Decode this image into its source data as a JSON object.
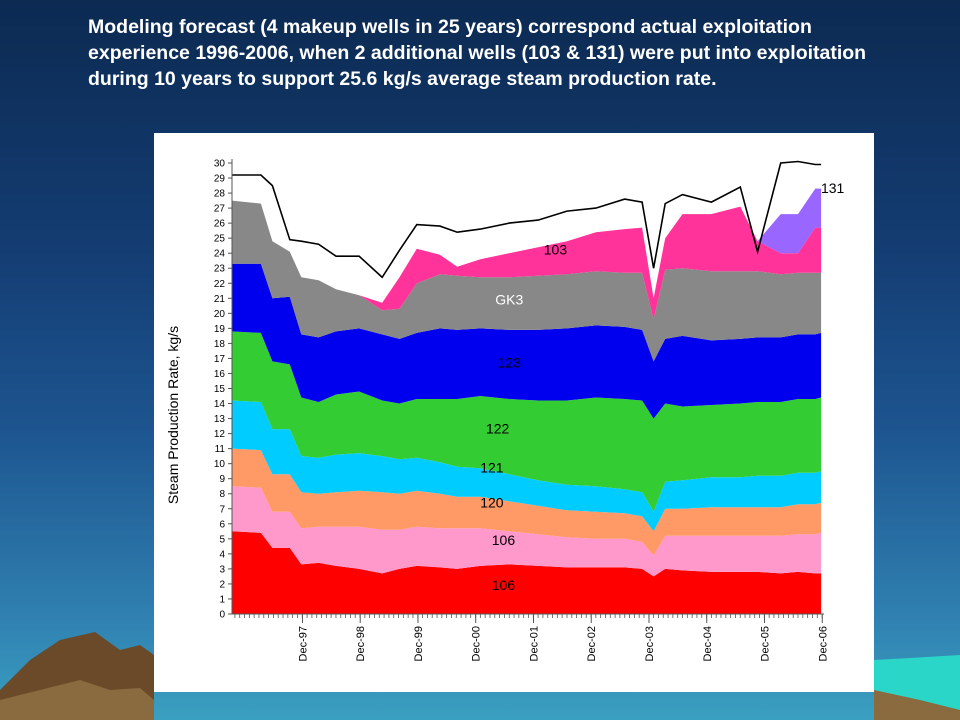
{
  "headline": "Modeling forecast (4 makeup wells in 25 years) correspond actual exploitation experience 1996-2006, when 2 additional wells (103 & 131) were  put into exploitation during 10 years to support 25.6 kg/s average steam production rate.",
  "chart_data": {
    "type": "area",
    "stacked": true,
    "title": "",
    "ylabel": "Steam Production Rate, kg/s",
    "xlabel": "",
    "ylim": [
      0,
      30
    ],
    "xlim": [
      1996.7,
      2006.95
    ],
    "yticks": [
      0,
      1,
      2,
      3,
      4,
      5,
      6,
      7,
      8,
      9,
      10,
      11,
      12,
      13,
      14,
      15,
      16,
      17,
      18,
      19,
      20,
      21,
      22,
      23,
      24,
      25,
      26,
      27,
      28,
      29,
      30
    ],
    "xticks": [
      {
        "label": "Dec-97",
        "x": 1997.92
      },
      {
        "label": "Dec-98",
        "x": 1998.92
      },
      {
        "label": "Dec-99",
        "x": 1999.92
      },
      {
        "label": "Dec-00",
        "x": 2000.92
      },
      {
        "label": "Dec-01",
        "x": 2001.92
      },
      {
        "label": "Dec-02",
        "x": 2002.92
      },
      {
        "label": "Dec-03",
        "x": 2003.92
      },
      {
        "label": "Dec-04",
        "x": 2004.92
      },
      {
        "label": "Dec-05",
        "x": 2005.92
      },
      {
        "label": "Dec-06",
        "x": 2006.92
      }
    ],
    "x": [
      1996.7,
      1997.2,
      1997.4,
      1997.7,
      1997.9,
      1998.2,
      1998.5,
      1998.9,
      1999.3,
      1999.6,
      1999.9,
      2000.3,
      2000.6,
      2001.0,
      2001.5,
      2002.0,
      2002.5,
      2003.0,
      2003.5,
      2003.8,
      2004.0,
      2004.2,
      2004.5,
      2005.0,
      2005.5,
      2005.8,
      2006.2,
      2006.5,
      2006.8,
      2006.9
    ],
    "series": [
      {
        "label": "106",
        "color": "#ff0000",
        "values": [
          5.5,
          5.4,
          4.4,
          4.4,
          3.3,
          3.4,
          3.2,
          3.0,
          2.7,
          3.0,
          3.2,
          3.1,
          3.0,
          3.2,
          3.3,
          3.2,
          3.1,
          3.1,
          3.1,
          3.0,
          2.5,
          3.0,
          2.9,
          2.8,
          2.8,
          2.8,
          2.7,
          2.8,
          2.7,
          2.7
        ]
      },
      {
        "label": "106",
        "color": "#ff99cc",
        "values": [
          3.0,
          3.0,
          2.4,
          2.4,
          2.4,
          2.4,
          2.6,
          2.8,
          2.9,
          2.6,
          2.6,
          2.6,
          2.7,
          2.5,
          2.2,
          2.1,
          2.0,
          1.9,
          1.9,
          1.8,
          1.4,
          2.2,
          2.3,
          2.4,
          2.4,
          2.4,
          2.5,
          2.5,
          2.6,
          2.7
        ]
      },
      {
        "label": "120",
        "color": "#ff9966",
        "values": [
          2.5,
          2.5,
          2.5,
          2.5,
          2.4,
          2.2,
          2.3,
          2.4,
          2.5,
          2.4,
          2.4,
          2.3,
          2.1,
          2.1,
          2.0,
          1.9,
          1.8,
          1.8,
          1.7,
          1.7,
          1.6,
          1.8,
          1.8,
          1.9,
          1.9,
          1.9,
          1.9,
          2.0,
          2.0,
          2.0
        ]
      },
      {
        "label": "121",
        "color": "#00ccff",
        "values": [
          3.2,
          3.2,
          3.0,
          3.0,
          2.4,
          2.4,
          2.5,
          2.5,
          2.4,
          2.3,
          2.2,
          2.1,
          2.0,
          1.9,
          1.8,
          1.7,
          1.7,
          1.7,
          1.6,
          1.6,
          1.3,
          1.8,
          1.9,
          2.0,
          2.0,
          2.1,
          2.1,
          2.1,
          2.1,
          2.1
        ]
      },
      {
        "label": "122",
        "color": "#33cc33",
        "values": [
          4.6,
          4.6,
          4.5,
          4.3,
          3.9,
          3.7,
          4.0,
          4.1,
          3.7,
          3.7,
          3.9,
          4.2,
          4.5,
          4.8,
          5.0,
          5.3,
          5.6,
          5.9,
          6.0,
          6.1,
          6.2,
          5.2,
          4.9,
          4.8,
          4.9,
          4.9,
          4.9,
          4.9,
          4.9,
          4.9
        ]
      },
      {
        "label": "123",
        "color": "#0000ee",
        "values": [
          4.5,
          4.6,
          4.2,
          4.5,
          4.2,
          4.3,
          4.2,
          4.2,
          4.4,
          4.3,
          4.4,
          4.7,
          4.6,
          4.5,
          4.6,
          4.7,
          4.8,
          4.8,
          4.8,
          4.7,
          3.8,
          4.3,
          4.7,
          4.3,
          4.3,
          4.3,
          4.3,
          4.3,
          4.3,
          4.3
        ]
      },
      {
        "label": "GK3",
        "color": "#888888",
        "values": [
          4.2,
          4.0,
          3.8,
          3.0,
          3.8,
          3.8,
          2.8,
          2.2,
          1.6,
          2.0,
          3.3,
          3.6,
          3.6,
          3.4,
          3.5,
          3.6,
          3.6,
          3.6,
          3.6,
          3.8,
          2.8,
          4.6,
          4.5,
          4.6,
          4.5,
          4.4,
          4.2,
          4.1,
          4.1,
          4.0
        ]
      },
      {
        "label": "103",
        "color": "#ff3399",
        "values": [
          0,
          0,
          0,
          0,
          0,
          0,
          0,
          0,
          0.5,
          2.1,
          2.3,
          1.3,
          0.6,
          1.2,
          1.6,
          1.9,
          2.2,
          2.6,
          2.9,
          3.0,
          1.4,
          2.1,
          3.6,
          3.8,
          4.3,
          2.0,
          1.4,
          1.3,
          3.0,
          3.0
        ]
      },
      {
        "label": "131",
        "color": "#9966ff",
        "values": [
          0,
          0,
          0,
          0,
          0,
          0,
          0,
          0,
          0,
          0,
          0,
          0,
          0,
          0,
          0,
          0,
          0,
          0,
          0,
          0,
          0,
          0,
          0,
          0,
          0,
          0,
          2.6,
          2.6,
          2.6,
          2.6
        ]
      }
    ],
    "total_line": {
      "color": "#000000",
      "values": [
        29.2,
        29.2,
        28.5,
        24.9,
        24.8,
        24.6,
        23.8,
        23.8,
        22.4,
        24.2,
        25.9,
        25.8,
        25.4,
        25.6,
        26.0,
        26.2,
        26.8,
        27.0,
        27.6,
        27.4,
        23.0,
        27.3,
        27.9,
        27.4,
        28.4,
        24.1,
        30.0,
        30.1,
        29.9,
        29.9
      ]
    },
    "series_label_positions": [
      {
        "text": "106",
        "x": 2001.4,
        "y": 1.6
      },
      {
        "text": "106",
        "x": 2001.4,
        "y": 4.6
      },
      {
        "text": "120",
        "x": 2001.2,
        "y": 7.1
      },
      {
        "text": "121",
        "x": 2001.2,
        "y": 9.4
      },
      {
        "text": "122",
        "x": 2001.3,
        "y": 12.0
      },
      {
        "text": "123",
        "x": 2001.5,
        "y": 16.4
      },
      {
        "text": "GK3",
        "x": 2001.5,
        "y": 20.6
      },
      {
        "text": "103",
        "x": 2002.3,
        "y": 23.9
      },
      {
        "text": "131",
        "x": 2007.1,
        "y": 28.0
      }
    ]
  }
}
